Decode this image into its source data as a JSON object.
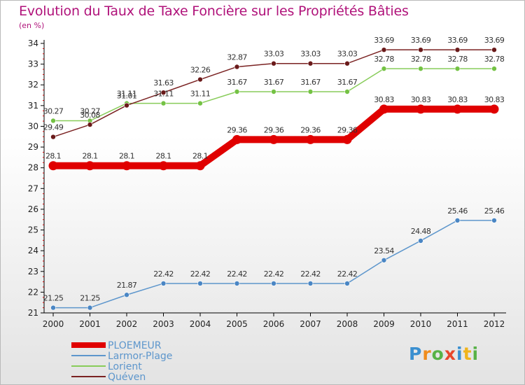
{
  "chart_data": {
    "type": "line",
    "title": "Evolution du Taux de Taxe Foncière sur les Propriétés Bâties",
    "unit_label": "(en %)",
    "xlabel": "",
    "ylabel": "",
    "x": [
      "2000",
      "2001",
      "2002",
      "2003",
      "2004",
      "2005",
      "2006",
      "2007",
      "2008",
      "2009",
      "2010",
      "2011",
      "2012"
    ],
    "ylim": [
      21,
      34
    ],
    "yticks": [
      21,
      22,
      23,
      24,
      25,
      26,
      27,
      28,
      29,
      30,
      31,
      32,
      33,
      34
    ],
    "grid": false,
    "legend": "bottom-left",
    "series": [
      {
        "name": "PLOEMEUR",
        "color": "#e00000",
        "values": [
          28.1,
          28.1,
          28.1,
          28.1,
          28.1,
          29.36,
          29.36,
          29.36,
          29.36,
          30.83,
          30.83,
          30.83,
          30.83
        ],
        "labels": [
          "28.1",
          "28.1",
          "28.1",
          "28.1",
          "28.1",
          "29.36",
          "29.36",
          "29.36",
          "29.36",
          "30.83",
          "30.83",
          "30.83",
          "30.83"
        ]
      },
      {
        "name": "Larmor-Plage",
        "color": "#5d96cc",
        "values": [
          21.25,
          21.25,
          21.87,
          22.42,
          22.42,
          22.42,
          22.42,
          22.42,
          22.42,
          23.54,
          24.48,
          25.46,
          25.46
        ],
        "labels": [
          "21.25",
          "21.25",
          "21.87",
          "22.42",
          "22.42",
          "22.42",
          "22.42",
          "22.42",
          "22.42",
          "23.54",
          "24.48",
          "25.46",
          "25.46"
        ]
      },
      {
        "name": "Lorient",
        "color": "#88cc5a",
        "values": [
          30.27,
          30.27,
          31.11,
          31.11,
          31.11,
          31.67,
          31.67,
          31.67,
          31.67,
          32.78,
          32.78,
          32.78,
          32.78
        ],
        "labels": [
          "30.27",
          "30.27",
          "31.11",
          "31.11",
          "31.11",
          "31.67",
          "31.67",
          "31.67",
          "31.67",
          "32.78",
          "32.78",
          "32.78",
          "32.78"
        ]
      },
      {
        "name": "Quéven",
        "color": "#7a2222",
        "values": [
          29.49,
          30.08,
          31.01,
          31.63,
          32.26,
          32.87,
          33.03,
          33.03,
          33.03,
          33.69,
          33.69,
          33.69,
          33.69
        ],
        "labels": [
          "29.49",
          "30.08",
          "31.01",
          "31.63",
          "32.26",
          "32.87",
          "33.03",
          "33.03",
          "33.03",
          "33.69",
          "33.69",
          "33.69",
          "33.69"
        ]
      }
    ]
  },
  "logo": {
    "text": "Proxiti",
    "letters": [
      "P",
      "r",
      "o",
      "x",
      "i",
      "t",
      "i"
    ],
    "colors": [
      "#3a8fd0",
      "#f08c1c",
      "#58b247",
      "#e8462b",
      "#3a8fd0",
      "#f0b41c",
      "#58b247"
    ]
  }
}
